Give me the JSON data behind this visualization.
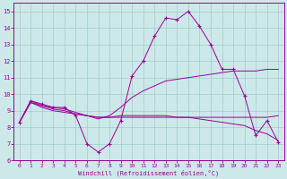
{
  "x": [
    0,
    1,
    2,
    3,
    4,
    5,
    6,
    7,
    8,
    9,
    10,
    11,
    12,
    13,
    14,
    15,
    16,
    17,
    18,
    19,
    20,
    21,
    22,
    23
  ],
  "line_main": [
    8.3,
    9.6,
    9.4,
    9.2,
    9.2,
    8.7,
    7.0,
    6.5,
    7.0,
    8.4,
    11.1,
    12.0,
    13.5,
    14.6,
    14.5,
    15.0,
    14.1,
    13.0,
    11.5,
    11.5,
    9.9,
    7.5,
    8.4,
    7.1
  ],
  "line_up": [
    8.3,
    9.6,
    9.3,
    9.2,
    9.1,
    8.9,
    8.7,
    8.5,
    8.7,
    9.2,
    9.8,
    10.2,
    10.5,
    10.8,
    10.9,
    11.0,
    11.1,
    11.2,
    11.3,
    11.4,
    11.4,
    11.4,
    11.5,
    11.5
  ],
  "line_mid": [
    8.3,
    9.5,
    9.3,
    9.1,
    9.0,
    8.8,
    8.7,
    8.6,
    8.6,
    8.7,
    8.7,
    8.7,
    8.7,
    8.7,
    8.6,
    8.6,
    8.5,
    8.4,
    8.3,
    8.2,
    8.1,
    7.8,
    7.6,
    7.2
  ],
  "line_low": [
    8.3,
    9.5,
    9.2,
    9.0,
    8.9,
    8.8,
    8.7,
    8.6,
    8.6,
    8.6,
    8.6,
    8.6,
    8.6,
    8.6,
    8.6,
    8.6,
    8.6,
    8.6,
    8.6,
    8.6,
    8.6,
    8.6,
    8.6,
    8.7
  ],
  "line_color": "#990099",
  "bg_color": "#cce8e8",
  "grid_color": "#b0b0b0",
  "xlabel": "Windchill (Refroidissement éolien,°C)",
  "ylim": [
    6,
    15.5
  ],
  "xlim": [
    -0.5,
    23.5
  ],
  "yticks": [
    6,
    7,
    8,
    9,
    10,
    11,
    12,
    13,
    14,
    15
  ],
  "xticks": [
    0,
    1,
    2,
    3,
    4,
    5,
    6,
    7,
    8,
    9,
    10,
    11,
    12,
    13,
    14,
    15,
    16,
    17,
    18,
    19,
    20,
    21,
    22,
    23
  ]
}
